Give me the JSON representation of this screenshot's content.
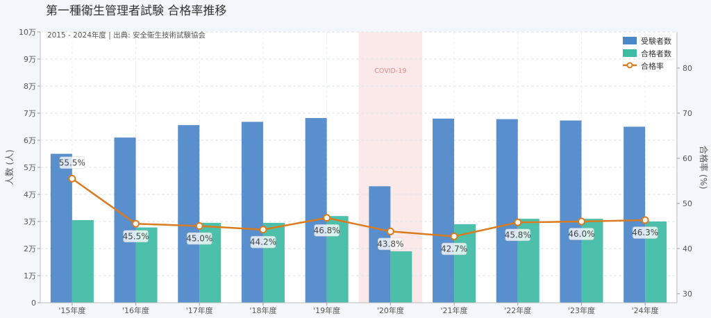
{
  "chart_data": {
    "type": "bar",
    "title": "第一種衛生管理者試験  合格率推移",
    "subtitle": "2015 - 2024年度 | 出典: 安全衛生技術試験協会",
    "categories": [
      "'15年度",
      "'16年度",
      "'17年度",
      "'18年度",
      "'19年度",
      "'20年度",
      "'21年度",
      "'22年度",
      "'23年度",
      "'24年度"
    ],
    "ylabel": "人数 (人)",
    "y2label": "合格率 (%)",
    "ylim": [
      0,
      100000
    ],
    "y2lim": [
      28,
      88
    ],
    "y_ticks": [
      {
        "value": 0,
        "label": "0"
      },
      {
        "value": 10000,
        "label": "1万"
      },
      {
        "value": 20000,
        "label": "2万"
      },
      {
        "value": 30000,
        "label": "3万"
      },
      {
        "value": 40000,
        "label": "4万"
      },
      {
        "value": 50000,
        "label": "5万"
      },
      {
        "value": 60000,
        "label": "6万"
      },
      {
        "value": 70000,
        "label": "7万"
      },
      {
        "value": 80000,
        "label": "8万"
      },
      {
        "value": 90000,
        "label": "9万"
      },
      {
        "value": 100000,
        "label": "10万"
      }
    ],
    "y2_ticks": [
      {
        "value": 30,
        "label": "30"
      },
      {
        "value": 40,
        "label": "40"
      },
      {
        "value": 50,
        "label": "50"
      },
      {
        "value": 60,
        "label": "60"
      },
      {
        "value": 70,
        "label": "70"
      },
      {
        "value": 80,
        "label": "80"
      }
    ],
    "series": [
      {
        "name": "受験者数",
        "kind": "bar",
        "color": "#4a86c8",
        "values": [
          55000,
          61000,
          65600,
          66800,
          68200,
          43000,
          68000,
          67800,
          67300,
          65000
        ]
      },
      {
        "name": "合格者数",
        "kind": "bar",
        "color": "#3dbba3",
        "values": [
          30500,
          27800,
          29500,
          29500,
          32000,
          19000,
          29000,
          31000,
          31000,
          30000
        ]
      },
      {
        "name": "合格率",
        "kind": "line",
        "axis": "right",
        "color": "#d97b1e",
        "values": [
          55.5,
          45.5,
          45.0,
          44.2,
          46.8,
          43.8,
          42.7,
          45.8,
          46.0,
          46.3
        ],
        "labels": [
          "55.5%",
          "45.5%",
          "45.0%",
          "44.2%",
          "46.8%",
          "43.8%",
          "42.7%",
          "45.8%",
          "46.0%",
          "46.3%"
        ]
      }
    ],
    "annotations": [
      {
        "text": "COVID-19",
        "category": "'20年度",
        "color": "#f8d7d7"
      }
    ],
    "grid": true,
    "legend": "top-right"
  }
}
